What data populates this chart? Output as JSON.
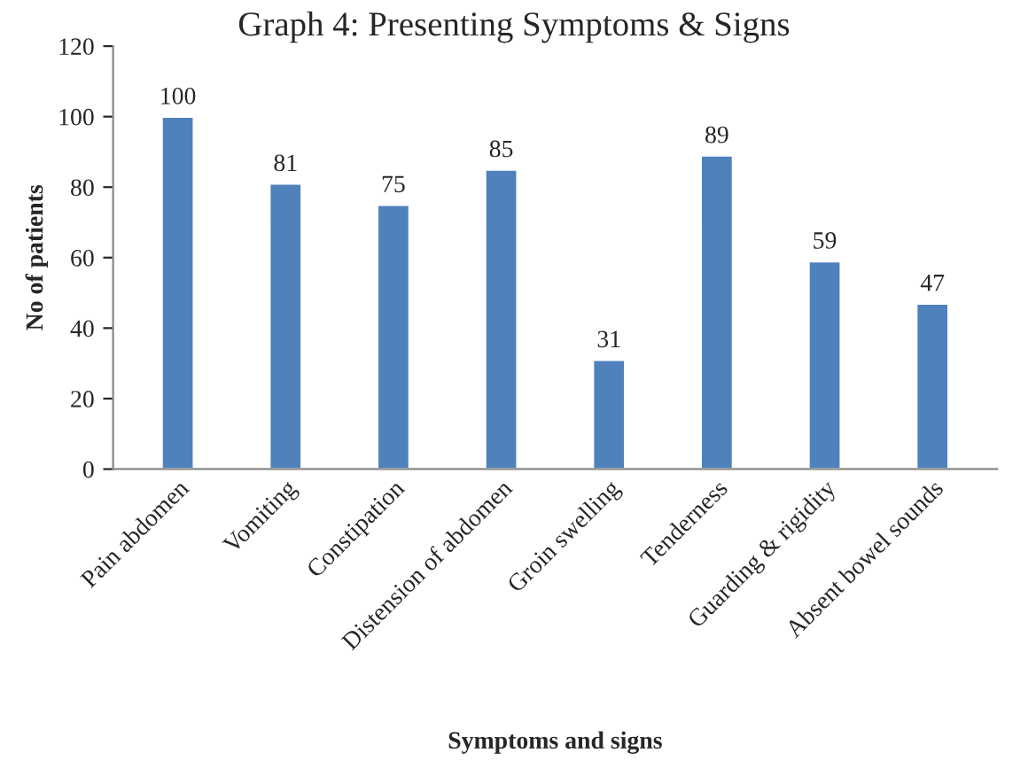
{
  "chart_data": {
    "type": "bar",
    "title": "Graph 4: Presenting Symptoms & Signs",
    "xlabel": "Symptoms and signs",
    "ylabel": "No of patients",
    "categories": [
      "Pain abdomen",
      "Vomiting",
      "Constipation",
      "Distension of abdomen",
      "Groin swelling",
      "Tenderness",
      "Guarding & rigidity",
      "Absent bowel sounds"
    ],
    "values": [
      100,
      81,
      75,
      85,
      31,
      89,
      59,
      47
    ],
    "color": "#4f81bd",
    "ylim": [
      0,
      120
    ],
    "yticks": [
      0,
      20,
      40,
      60,
      80,
      100,
      120
    ],
    "grid": false,
    "data_labels": true
  }
}
